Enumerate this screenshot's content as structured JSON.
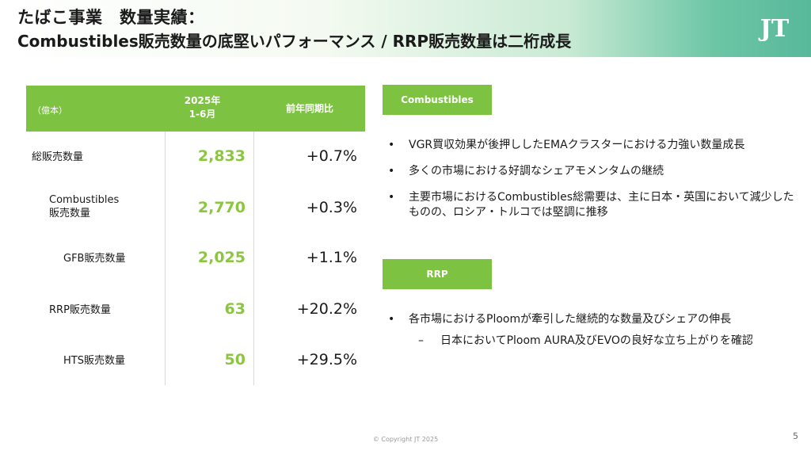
{
  "header": {
    "title_line1": "たばこ事業　数量実績：",
    "title_line2": "Combustibles販売数量の底堅いパフォーマンス / RRP販売数量は二桁成長",
    "logo_text": "JT"
  },
  "table": {
    "unit": "（億本）",
    "period_line1": "2025年",
    "period_line2": "1-6月",
    "yoy_header": "前年同期比",
    "rows": [
      {
        "label": "総販売数量",
        "value": "2,833",
        "yoy": "+0.7%"
      },
      {
        "label_line1": "Combustibles",
        "label_line2": "販売数量",
        "value": "2,770",
        "yoy": "+0.3%"
      },
      {
        "label": "GFB販売数量",
        "value": "2,025",
        "yoy": "+1.1%"
      },
      {
        "label": "RRP販売数量",
        "value": "63",
        "yoy": "+20.2%"
      },
      {
        "label": "HTS販売数量",
        "value": "50",
        "yoy": "+29.5%"
      }
    ]
  },
  "combustibles": {
    "badge": "Combustibles",
    "bullets": [
      "VGR買収効果が後押ししたEMAクラスターにおける力強い数量成長",
      "多くの市場における好調なシェアモメンタムの継続",
      "主要市場におけるCombustibles総需要は、主に日本・英国において減少したものの、ロシア・トルコでは堅調に推移"
    ]
  },
  "rrp": {
    "badge": "RRP",
    "bullets": [
      "各市場におけるPloomが牽引した継続的な数量及びシェアの伸長"
    ],
    "sub_dash": "–",
    "sub_bullet": "日本においてPloom AURA及びEVOの良好な立ち上がりを確認"
  },
  "footer": {
    "copyright": "© Copyright JT 2025",
    "page": "5"
  }
}
